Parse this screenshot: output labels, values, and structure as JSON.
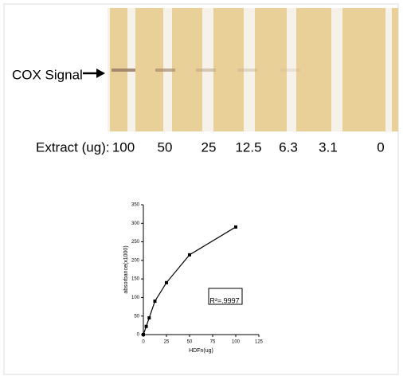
{
  "strips": {
    "signal_label": "COX Signal",
    "amount_label": "Extract (ug):",
    "amounts": [
      "100",
      "50",
      "25",
      "12.5",
      "6.3",
      "3.1",
      "0"
    ]
  },
  "chart_data": {
    "type": "line",
    "x_label": "HDFn(ug)",
    "y_label": "absorbance(x1000)",
    "annotation": "R²=.9997",
    "x": [
      0,
      3.1,
      6.3,
      12.5,
      25,
      50,
      100
    ],
    "values": [
      0,
      22,
      45,
      90,
      140,
      215,
      290
    ],
    "color": "#000000",
    "xlim": [
      0,
      125
    ],
    "xticks": [
      0,
      25,
      50,
      75,
      100,
      125
    ],
    "ylim": [
      0,
      350
    ],
    "yticks": [
      0,
      50,
      100,
      150,
      200,
      250,
      300,
      350
    ]
  }
}
